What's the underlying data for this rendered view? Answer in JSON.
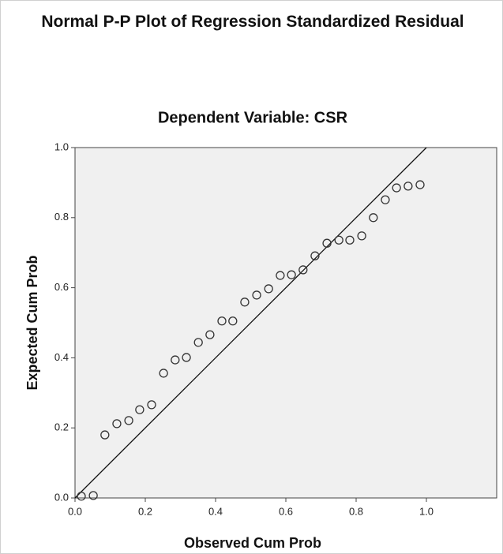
{
  "chart_data": {
    "type": "scatter",
    "title": "Normal P-P Plot of Regression Standardized Residual",
    "subtitle": "Dependent Variable: CSR",
    "x_label": "Observed Cum Prob",
    "y_label": "Expected Cum Prob",
    "x": [
      0.018,
      0.052,
      0.085,
      0.119,
      0.153,
      0.184,
      0.218,
      0.252,
      0.285,
      0.317,
      0.351,
      0.384,
      0.418,
      0.449,
      0.483,
      0.517,
      0.551,
      0.584,
      0.616,
      0.649,
      0.683,
      0.717,
      0.751,
      0.782,
      0.816,
      0.849,
      0.883,
      0.915,
      0.948,
      0.982
    ],
    "values": [
      0.005,
      0.007,
      0.18,
      0.212,
      0.221,
      0.252,
      0.266,
      0.356,
      0.394,
      0.401,
      0.444,
      0.466,
      0.505,
      0.505,
      0.559,
      0.579,
      0.597,
      0.635,
      0.637,
      0.651,
      0.691,
      0.727,
      0.736,
      0.736,
      0.748,
      0.8,
      0.851,
      0.885,
      0.89,
      0.894
    ],
    "color": "#333333",
    "reference_line": true,
    "xlim": [
      0,
      1.2
    ],
    "ylim": [
      0,
      1
    ],
    "xticks": [
      {
        "value": 0,
        "label": "0.0"
      },
      {
        "value": 0.2,
        "label": "0.2"
      },
      {
        "value": 0.4,
        "label": "0.4"
      },
      {
        "value": 0.6,
        "label": "0.6"
      },
      {
        "value": 0.8,
        "label": "0.8"
      },
      {
        "value": 1,
        "label": "1.0"
      }
    ],
    "yticks": [
      {
        "value": 0,
        "label": "0.0"
      },
      {
        "value": 0.2,
        "label": "0.2"
      },
      {
        "value": 0.4,
        "label": "0.4"
      },
      {
        "value": 0.6,
        "label": "0.6"
      },
      {
        "value": 0.8,
        "label": "0.8"
      },
      {
        "value": 1,
        "label": "1.0"
      }
    ],
    "grid": false
  }
}
